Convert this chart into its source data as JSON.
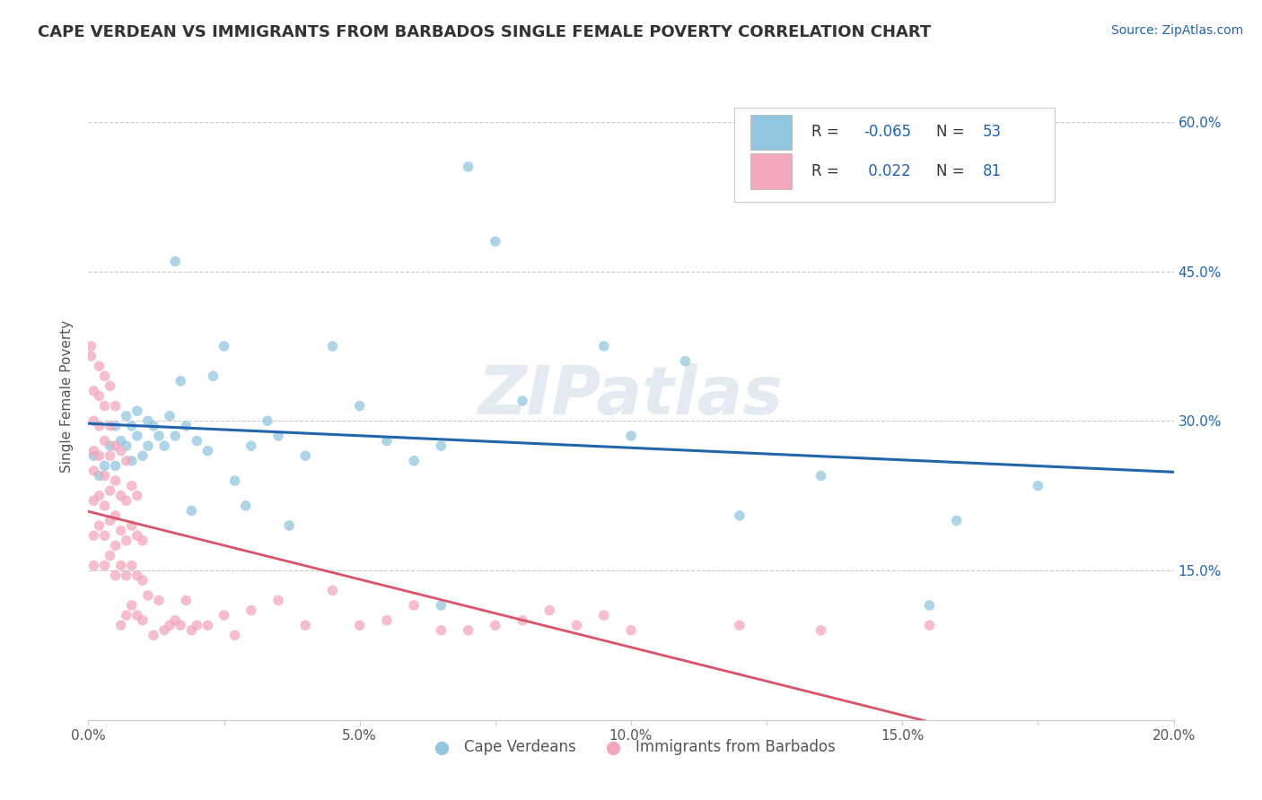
{
  "title": "CAPE VERDEAN VS IMMIGRANTS FROM BARBADOS SINGLE FEMALE POVERTY CORRELATION CHART",
  "source": "Source: ZipAtlas.com",
  "ylabel": "Single Female Poverty",
  "xlim": [
    0.0,
    0.2
  ],
  "ylim": [
    0.0,
    0.65
  ],
  "xtick_labels": [
    "0.0%",
    "",
    "5.0%",
    "",
    "10.0%",
    "",
    "15.0%",
    "",
    "20.0%"
  ],
  "xtick_vals": [
    0.0,
    0.025,
    0.05,
    0.075,
    0.1,
    0.125,
    0.15,
    0.175,
    0.2
  ],
  "ytick_labels": [
    "15.0%",
    "30.0%",
    "45.0%",
    "60.0%"
  ],
  "ytick_vals": [
    0.15,
    0.3,
    0.45,
    0.6
  ],
  "blue_color": "#93c6e0",
  "pink_color": "#f4a7bb",
  "blue_line_color": "#2166ac",
  "pink_line_color": "#d9536a",
  "watermark": "ZIPatlas",
  "blue_scatter": [
    [
      0.001,
      0.265
    ],
    [
      0.002,
      0.245
    ],
    [
      0.003,
      0.255
    ],
    [
      0.004,
      0.275
    ],
    [
      0.005,
      0.295
    ],
    [
      0.005,
      0.255
    ],
    [
      0.006,
      0.28
    ],
    [
      0.007,
      0.305
    ],
    [
      0.007,
      0.275
    ],
    [
      0.008,
      0.26
    ],
    [
      0.008,
      0.295
    ],
    [
      0.009,
      0.285
    ],
    [
      0.009,
      0.31
    ],
    [
      0.01,
      0.265
    ],
    [
      0.011,
      0.3
    ],
    [
      0.011,
      0.275
    ],
    [
      0.012,
      0.295
    ],
    [
      0.013,
      0.285
    ],
    [
      0.014,
      0.275
    ],
    [
      0.015,
      0.305
    ],
    [
      0.016,
      0.46
    ],
    [
      0.016,
      0.285
    ],
    [
      0.017,
      0.34
    ],
    [
      0.018,
      0.295
    ],
    [
      0.019,
      0.21
    ],
    [
      0.02,
      0.28
    ],
    [
      0.022,
      0.27
    ],
    [
      0.023,
      0.345
    ],
    [
      0.025,
      0.375
    ],
    [
      0.027,
      0.24
    ],
    [
      0.029,
      0.215
    ],
    [
      0.03,
      0.275
    ],
    [
      0.033,
      0.3
    ],
    [
      0.035,
      0.285
    ],
    [
      0.037,
      0.195
    ],
    [
      0.04,
      0.265
    ],
    [
      0.045,
      0.375
    ],
    [
      0.05,
      0.315
    ],
    [
      0.055,
      0.28
    ],
    [
      0.06,
      0.26
    ],
    [
      0.065,
      0.115
    ],
    [
      0.065,
      0.275
    ],
    [
      0.07,
      0.555
    ],
    [
      0.075,
      0.48
    ],
    [
      0.08,
      0.32
    ],
    [
      0.095,
      0.375
    ],
    [
      0.1,
      0.285
    ],
    [
      0.11,
      0.36
    ],
    [
      0.12,
      0.205
    ],
    [
      0.135,
      0.245
    ],
    [
      0.155,
      0.115
    ],
    [
      0.16,
      0.2
    ],
    [
      0.175,
      0.235
    ]
  ],
  "pink_scatter": [
    [
      0.0005,
      0.365
    ],
    [
      0.0005,
      0.375
    ],
    [
      0.001,
      0.155
    ],
    [
      0.001,
      0.185
    ],
    [
      0.001,
      0.22
    ],
    [
      0.001,
      0.25
    ],
    [
      0.001,
      0.27
    ],
    [
      0.001,
      0.3
    ],
    [
      0.001,
      0.33
    ],
    [
      0.002,
      0.195
    ],
    [
      0.002,
      0.225
    ],
    [
      0.002,
      0.265
    ],
    [
      0.002,
      0.295
    ],
    [
      0.002,
      0.325
    ],
    [
      0.002,
      0.355
    ],
    [
      0.003,
      0.155
    ],
    [
      0.003,
      0.185
    ],
    [
      0.003,
      0.215
    ],
    [
      0.003,
      0.245
    ],
    [
      0.003,
      0.28
    ],
    [
      0.003,
      0.315
    ],
    [
      0.003,
      0.345
    ],
    [
      0.004,
      0.165
    ],
    [
      0.004,
      0.2
    ],
    [
      0.004,
      0.23
    ],
    [
      0.004,
      0.265
    ],
    [
      0.004,
      0.295
    ],
    [
      0.004,
      0.335
    ],
    [
      0.005,
      0.145
    ],
    [
      0.005,
      0.175
    ],
    [
      0.005,
      0.205
    ],
    [
      0.005,
      0.24
    ],
    [
      0.005,
      0.275
    ],
    [
      0.005,
      0.315
    ],
    [
      0.006,
      0.095
    ],
    [
      0.006,
      0.155
    ],
    [
      0.006,
      0.19
    ],
    [
      0.006,
      0.225
    ],
    [
      0.006,
      0.27
    ],
    [
      0.007,
      0.105
    ],
    [
      0.007,
      0.145
    ],
    [
      0.007,
      0.18
    ],
    [
      0.007,
      0.22
    ],
    [
      0.007,
      0.26
    ],
    [
      0.008,
      0.115
    ],
    [
      0.008,
      0.155
    ],
    [
      0.008,
      0.195
    ],
    [
      0.008,
      0.235
    ],
    [
      0.009,
      0.105
    ],
    [
      0.009,
      0.145
    ],
    [
      0.009,
      0.185
    ],
    [
      0.009,
      0.225
    ],
    [
      0.01,
      0.1
    ],
    [
      0.01,
      0.14
    ],
    [
      0.01,
      0.18
    ],
    [
      0.011,
      0.125
    ],
    [
      0.012,
      0.085
    ],
    [
      0.013,
      0.12
    ],
    [
      0.014,
      0.09
    ],
    [
      0.015,
      0.095
    ],
    [
      0.016,
      0.1
    ],
    [
      0.017,
      0.095
    ],
    [
      0.018,
      0.12
    ],
    [
      0.019,
      0.09
    ],
    [
      0.02,
      0.095
    ],
    [
      0.022,
      0.095
    ],
    [
      0.025,
      0.105
    ],
    [
      0.027,
      0.085
    ],
    [
      0.03,
      0.11
    ],
    [
      0.035,
      0.12
    ],
    [
      0.04,
      0.095
    ],
    [
      0.045,
      0.13
    ],
    [
      0.05,
      0.095
    ],
    [
      0.055,
      0.1
    ],
    [
      0.06,
      0.115
    ],
    [
      0.065,
      0.09
    ],
    [
      0.07,
      0.09
    ],
    [
      0.075,
      0.095
    ],
    [
      0.08,
      0.1
    ],
    [
      0.085,
      0.11
    ],
    [
      0.09,
      0.095
    ],
    [
      0.095,
      0.105
    ],
    [
      0.1,
      0.09
    ],
    [
      0.12,
      0.095
    ],
    [
      0.135,
      0.09
    ],
    [
      0.155,
      0.095
    ]
  ]
}
